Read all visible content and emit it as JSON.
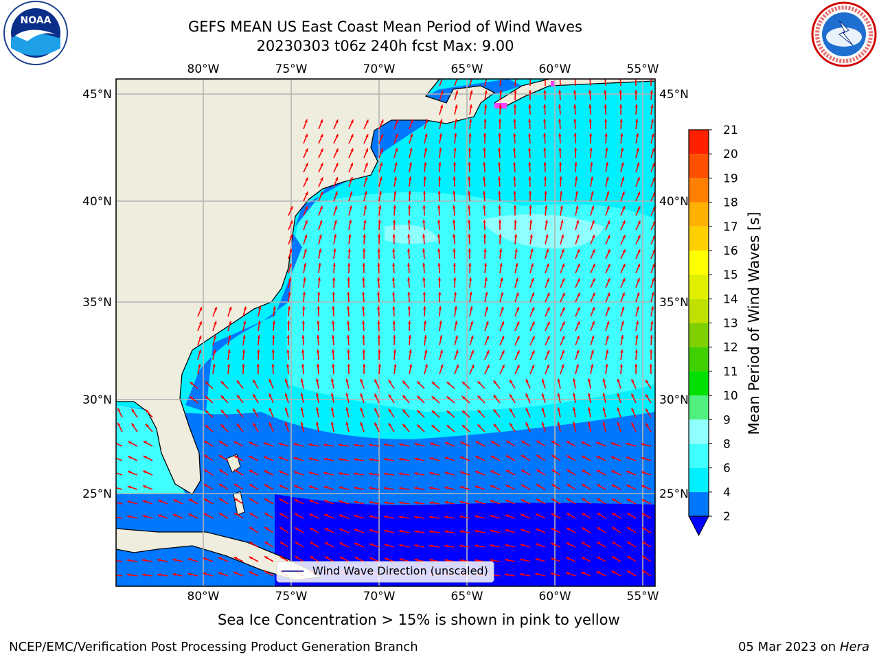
{
  "header": {
    "title": "GEFS MEAN US East Coast Mean Period of Wind Waves",
    "subtitle": "20230303 t06z 240h fcst   Max: 9.00"
  },
  "map": {
    "lon_ticks": [
      "80°W",
      "75°W",
      "70°W",
      "65°W",
      "60°W",
      "55°W"
    ],
    "lat_ticks_left": [
      "45°N",
      "40°N",
      "35°N",
      "30°N",
      "25°N"
    ],
    "lat_ticks_right": [
      "45°N",
      "40°N",
      "35°N",
      "30°N",
      "25°N"
    ],
    "legend_label": "Wind Wave Direction (unscaled)",
    "arrow_color": "#ff0000"
  },
  "colorbar": {
    "label": "Mean Period of Wind Waves [s]",
    "ticks": [
      "2",
      "4",
      "6",
      "8",
      "9",
      "10",
      "11",
      "12",
      "13",
      "14",
      "15",
      "16",
      "17",
      "18",
      "19",
      "20",
      "21"
    ],
    "colors": [
      "#0077ff",
      "#00f0ff",
      "#40ffff",
      "#90ffff",
      "#b0ffff",
      "#50f080",
      "#00e000",
      "#40d000",
      "#80d000",
      "#c0e000",
      "#e0f000",
      "#ffff00",
      "#ffd000",
      "#ffb000",
      "#ff8000",
      "#ff5000",
      "#ff2000",
      "#ff0000"
    ],
    "extend_color": "#0000ff"
  },
  "caption": "Sea Ice Concentration > 15% is shown in pink to yellow",
  "footer": {
    "left": "NCEP/EMC/Verification Post Processing Product Generation Branch",
    "date": "05 Mar 2023 on",
    "machine": "Hera"
  },
  "logos": {
    "noaa_text": "NOAA",
    "nws_text": "NATIONAL WEATHER SERVICE"
  }
}
